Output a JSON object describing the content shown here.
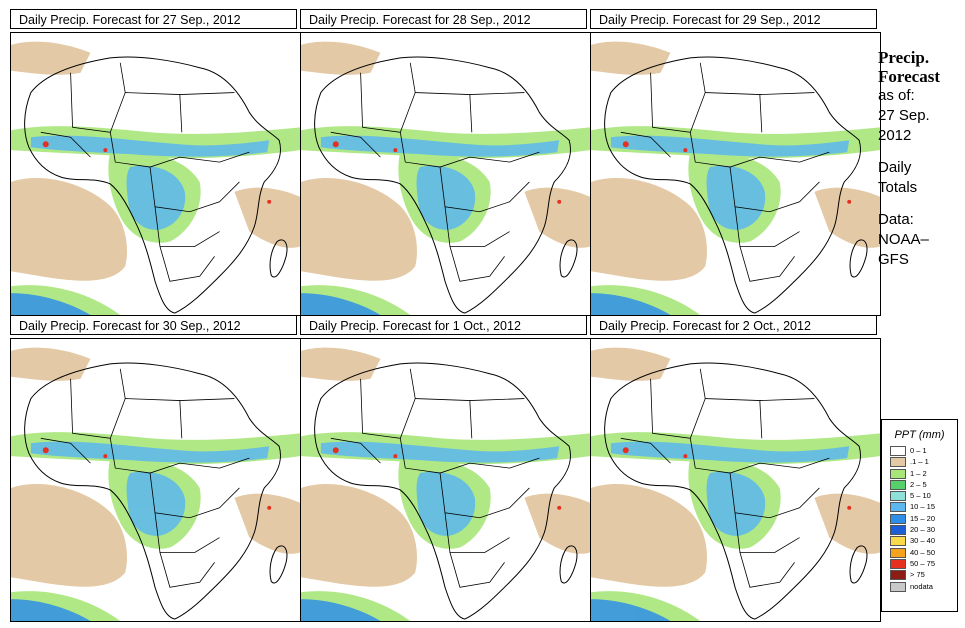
{
  "panels": [
    {
      "title": "Daily Precip. Forecast for  27 Sep., 2012"
    },
    {
      "title": "Daily Precip. Forecast for  28 Sep., 2012"
    },
    {
      "title": "Daily Precip. Forecast for  29 Sep., 2012"
    },
    {
      "title": "Daily Precip. Forecast for  30 Sep., 2012"
    },
    {
      "title": "Daily Precip. Forecast for  1 Oct., 2012"
    },
    {
      "title": "Daily Precip. Forecast for  2 Oct., 2012"
    }
  ],
  "side": {
    "line1": "Precip.",
    "line2": "Forecast",
    "as_of": "as of:",
    "date_line1": "27 Sep.",
    "date_line2": "2012",
    "daily1": "Daily",
    "daily2": "Totals",
    "data1": "Data:",
    "data2": "NOAA–",
    "data3": "GFS"
  },
  "legend": {
    "title": "PPT (mm)",
    "items": [
      {
        "label": "0 – 1",
        "color": "#ffffff"
      },
      {
        "label": ".1 – 1",
        "color": "#e3c9a6"
      },
      {
        "label": "1 – 2",
        "color": "#a8e67a"
      },
      {
        "label": "2 – 5",
        "color": "#55d06a"
      },
      {
        "label": "5 – 10",
        "color": "#8ee0d8"
      },
      {
        "label": "10 – 15",
        "color": "#5cb7ee"
      },
      {
        "label": "15 – 20",
        "color": "#2f8fe6"
      },
      {
        "label": "20 – 30",
        "color": "#1c5ed6"
      },
      {
        "label": "30 – 40",
        "color": "#f7d94a"
      },
      {
        "label": "40 – 50",
        "color": "#f5a21f"
      },
      {
        "label": "50 – 75",
        "color": "#e5301f"
      },
      {
        "label": "> 75",
        "color": "#8b1d16"
      },
      {
        "label": "nodata",
        "color": "#c9c9c9"
      }
    ]
  }
}
